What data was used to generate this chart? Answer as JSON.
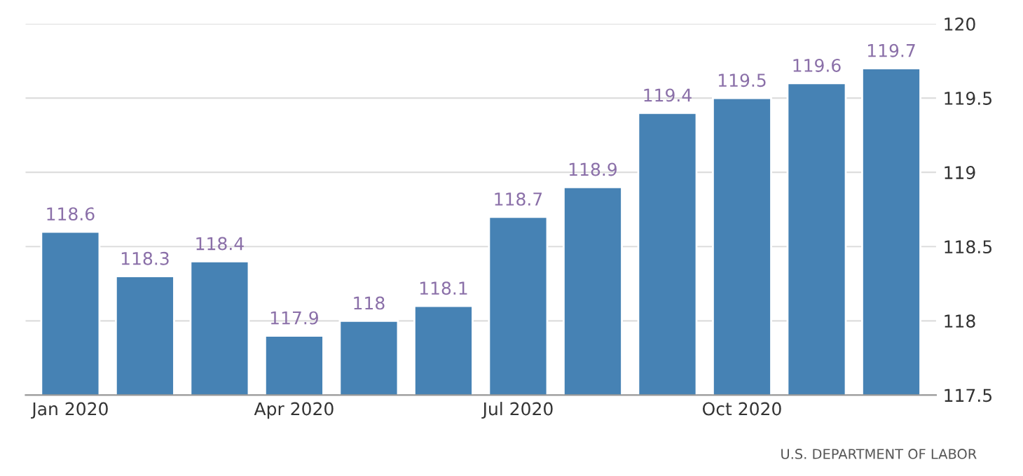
{
  "chart_data": {
    "type": "bar",
    "categories": [
      "Jan 2020",
      null,
      null,
      "Apr 2020",
      null,
      null,
      "Jul 2020",
      null,
      null,
      "Oct 2020",
      null,
      null
    ],
    "values": [
      118.6,
      118.3,
      118.4,
      117.9,
      118,
      118.1,
      118.7,
      118.9,
      119.4,
      119.5,
      119.6,
      119.7
    ],
    "color": "#4682b4",
    "data_labels": true,
    "ylim": [
      117.5,
      120
    ],
    "yticks": [
      117.5,
      118,
      118.5,
      119,
      119.5,
      120
    ],
    "grid": "y",
    "annotations": [
      "U.S. DEPARTMENT OF LABOR"
    ]
  }
}
